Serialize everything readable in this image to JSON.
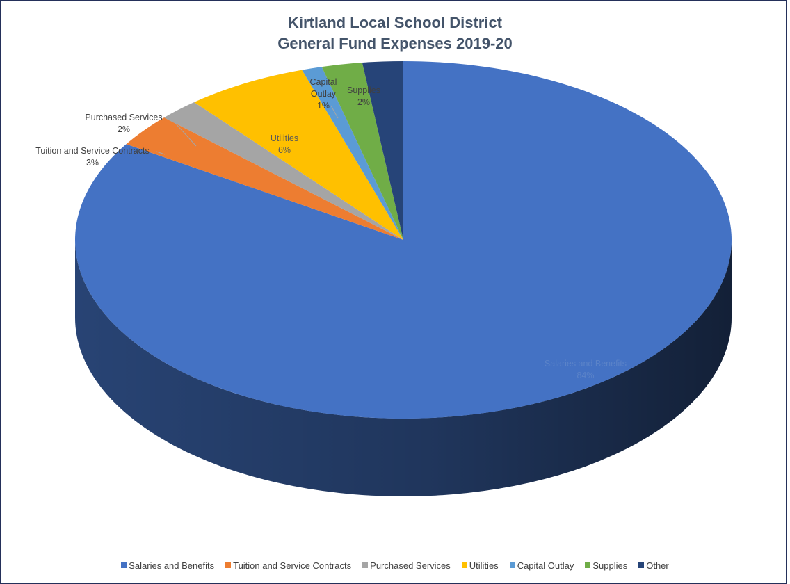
{
  "chart_data": {
    "type": "pie",
    "title": "Kirtland Local School District",
    "subtitle": "General Fund Expenses 2019-20",
    "slices": [
      {
        "name": "Salaries and Benefits",
        "value": 84,
        "label": "84%",
        "color": "#4472c4"
      },
      {
        "name": "Tuition and Service Contracts",
        "value": 3,
        "label": "3%",
        "color": "#ed7d31"
      },
      {
        "name": "Purchased Services",
        "value": 2,
        "label": "2%",
        "color": "#a5a5a5"
      },
      {
        "name": "Utilities",
        "value": 6,
        "label": "6%",
        "color": "#ffc000"
      },
      {
        "name": "Capital Outlay",
        "value": 1,
        "label": "1%",
        "color": "#5b9bd5"
      },
      {
        "name": "Supplies",
        "value": 2,
        "label": "2%",
        "color": "#70ad47"
      },
      {
        "name": "Other",
        "value": 2,
        "label": "2%",
        "color": "#264478"
      }
    ],
    "legend_position": "bottom"
  }
}
